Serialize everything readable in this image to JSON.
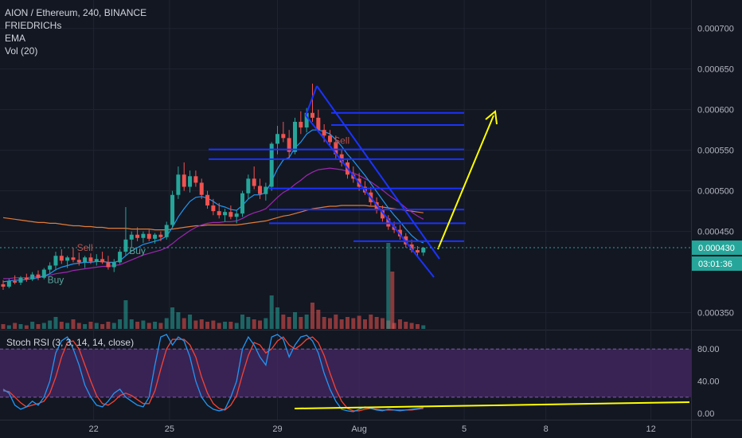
{
  "legend": {
    "symbol": "AION / Ethereum, 240, BINANCE",
    "indicators": [
      "FRIEDRICHs",
      "EMA",
      "Vol (20)"
    ]
  },
  "rsi": {
    "label": "Stoch RSI (3, 3, 14, 14, close)"
  },
  "badges": {
    "price": "0.000430",
    "countdown": "03:01:36"
  },
  "signals": {
    "buy": "Buy",
    "sell": "Sell"
  },
  "colors": {
    "background": "#131722",
    "grid": "#1f2430",
    "up": "#26a69a",
    "down": "#ef5350",
    "channel": "#1a33ff",
    "arrow": "#ffff00",
    "ema_short": "#2196f3",
    "ema_mid": "#9c27b0",
    "ema_long": "#e07b39",
    "rsi_k": "#2196f3",
    "rsi_d": "#f44336",
    "rsi_band": "#4a2a6a"
  },
  "chart_data": [
    {
      "type": "candlestick",
      "x_ticks": [
        "22",
        "25",
        "29",
        "Aug",
        "5",
        "8",
        "12"
      ],
      "y_ticks": [
        "0.000700",
        "0.000650",
        "0.000600",
        "0.000550",
        "0.000500",
        "0.000450",
        "0.000430",
        "0.000350"
      ],
      "ylim": [
        0.00033,
        0.000735
      ],
      "last_price": 0.00043,
      "ohlc": [
        [
          0.000385,
          0.00039,
          0.000378,
          0.000382
        ],
        [
          0.000382,
          0.000392,
          0.00038,
          0.000389
        ],
        [
          0.000389,
          0.000396,
          0.000385,
          0.000387
        ],
        [
          0.000387,
          0.000395,
          0.000384,
          0.000393
        ],
        [
          0.000393,
          0.000398,
          0.000388,
          0.000391
        ],
        [
          0.000391,
          0.0004,
          0.000389,
          0.000397
        ],
        [
          0.000397,
          0.000402,
          0.00039,
          0.000393
        ],
        [
          0.000393,
          0.000405,
          0.000391,
          0.000403
        ],
        [
          0.000403,
          0.000412,
          0.000398,
          0.000408
        ],
        [
          0.000408,
          0.000425,
          0.000402,
          0.00042
        ],
        [
          0.00042,
          0.000428,
          0.00041,
          0.000414
        ],
        [
          0.000414,
          0.00042,
          0.000405,
          0.000418
        ],
        [
          0.000418,
          0.00043,
          0.000412,
          0.000415
        ],
        [
          0.000415,
          0.000424,
          0.000408,
          0.000412
        ],
        [
          0.000412,
          0.00042,
          0.000405,
          0.000418
        ],
        [
          0.000418,
          0.000423,
          0.00041,
          0.000413
        ],
        [
          0.000413,
          0.000422,
          0.000408,
          0.000416
        ],
        [
          0.000416,
          0.000425,
          0.00041,
          0.000412
        ],
        [
          0.000412,
          0.00042,
          0.000403,
          0.000406
        ],
        [
          0.000406,
          0.000416,
          0.0004,
          0.000412
        ],
        [
          0.000412,
          0.000428,
          0.00041,
          0.000425
        ],
        [
          0.000425,
          0.00048,
          0.00042,
          0.00044
        ],
        [
          0.00044,
          0.00045,
          0.00043,
          0.000446
        ],
        [
          0.000446,
          0.000455,
          0.000438,
          0.000442
        ],
        [
          0.000442,
          0.00045,
          0.000436,
          0.000447
        ],
        [
          0.000447,
          0.000452,
          0.000438,
          0.000441
        ],
        [
          0.000441,
          0.000448,
          0.000435,
          0.000446
        ],
        [
          0.000446,
          0.00045,
          0.000438,
          0.000443
        ],
        [
          0.000443,
          0.000462,
          0.00044,
          0.000458
        ],
        [
          0.000458,
          0.0005,
          0.000455,
          0.000495
        ],
        [
          0.000495,
          0.00053,
          0.00049,
          0.00052
        ],
        [
          0.00052,
          0.000535,
          0.0005,
          0.000505
        ],
        [
          0.000505,
          0.000525,
          0.000498,
          0.000518
        ],
        [
          0.000518,
          0.000525,
          0.000505,
          0.00051
        ],
        [
          0.00051,
          0.000515,
          0.00049,
          0.000495
        ],
        [
          0.000495,
          0.0005,
          0.000478,
          0.000482
        ],
        [
          0.000482,
          0.00049,
          0.00047,
          0.000475
        ],
        [
          0.000475,
          0.000485,
          0.000466,
          0.00047
        ],
        [
          0.00047,
          0.000478,
          0.000462,
          0.000474
        ],
        [
          0.000474,
          0.000482,
          0.000465,
          0.000468
        ],
        [
          0.000468,
          0.000476,
          0.00046,
          0.000472
        ],
        [
          0.000472,
          0.0005,
          0.000468,
          0.000497
        ],
        [
          0.000497,
          0.00052,
          0.00049,
          0.000515
        ],
        [
          0.000515,
          0.00053,
          0.000502,
          0.000506
        ],
        [
          0.000506,
          0.000515,
          0.00049,
          0.000496
        ],
        [
          0.000496,
          0.00051,
          0.000488,
          0.000505
        ],
        [
          0.000505,
          0.00056,
          0.0005,
          0.000558
        ],
        [
          0.000558,
          0.00058,
          0.000545,
          0.00057
        ],
        [
          0.00057,
          0.000585,
          0.00056,
          0.000565
        ],
        [
          0.000565,
          0.000575,
          0.00054,
          0.000548
        ],
        [
          0.000548,
          0.00059,
          0.000545,
          0.000585
        ],
        [
          0.000585,
          0.000598,
          0.00057,
          0.000578
        ],
        [
          0.000578,
          0.000602,
          0.000572,
          0.000596
        ],
        [
          0.000596,
          0.000632,
          0.000585,
          0.00059
        ],
        [
          0.00059,
          0.0006,
          0.000572,
          0.000575
        ],
        [
          0.000575,
          0.000582,
          0.00056,
          0.000568
        ],
        [
          0.000568,
          0.000575,
          0.000555,
          0.00056
        ],
        [
          0.00056,
          0.000568,
          0.00054,
          0.000545
        ],
        [
          0.000545,
          0.000552,
          0.00053,
          0.000535
        ],
        [
          0.000535,
          0.00054,
          0.000515,
          0.00052
        ],
        [
          0.00052,
          0.00053,
          0.00051,
          0.000515
        ],
        [
          0.000515,
          0.000522,
          0.0005,
          0.000505
        ],
        [
          0.000505,
          0.000512,
          0.000495,
          0.000498
        ],
        [
          0.000498,
          0.000505,
          0.000482,
          0.000486
        ],
        [
          0.000486,
          0.000492,
          0.000472,
          0.000476
        ],
        [
          0.000476,
          0.000482,
          0.000462,
          0.000466
        ],
        [
          0.000466,
          0.00047,
          0.000452,
          0.000456
        ],
        [
          0.000456,
          0.000462,
          0.000448,
          0.000452
        ],
        [
          0.000452,
          0.000458,
          0.00044,
          0.000444
        ],
        [
          0.000444,
          0.000448,
          0.00043,
          0.000434
        ],
        [
          0.000434,
          0.00044,
          0.000424,
          0.000427
        ],
        [
          0.000427,
          0.000432,
          0.00042,
          0.000424
        ],
        [
          0.000424,
          0.000431,
          0.00042,
          0.00043
        ]
      ],
      "volume": [
        4,
        3,
        5,
        4,
        3,
        6,
        4,
        5,
        7,
        10,
        6,
        5,
        8,
        5,
        4,
        6,
        5,
        4,
        6,
        5,
        8,
        24,
        8,
        6,
        7,
        5,
        6,
        5,
        9,
        18,
        14,
        9,
        12,
        7,
        8,
        6,
        7,
        5,
        6,
        6,
        5,
        12,
        10,
        8,
        7,
        9,
        28,
        18,
        12,
        10,
        14,
        10,
        12,
        22,
        16,
        10,
        9,
        12,
        8,
        10,
        9,
        11,
        8,
        12,
        10,
        9,
        7,
        5,
        8,
        6,
        5,
        4,
        3
      ],
      "volume_extra": {
        "spike_index": 66,
        "spike_values": [
          48,
          72
        ]
      },
      "ema_short": [
        0.000388,
        0.000389,
        0.00039,
        0.00039,
        0.000391,
        0.000392,
        0.000393,
        0.000395,
        0.000398,
        0.000403,
        0.000406,
        0.000408,
        0.00041,
        0.000411,
        0.000412,
        0.000412,
        0.000413,
        0.000413,
        0.000412,
        0.000412,
        0.000414,
        0.00042,
        0.000426,
        0.00043,
        0.000434,
        0.000436,
        0.000438,
        0.00044,
        0.000444,
        0.000455,
        0.000468,
        0.000478,
        0.000487,
        0.000492,
        0.000493,
        0.000491,
        0.000487,
        0.000482,
        0.00048,
        0.000477,
        0.000476,
        0.000482,
        0.00049,
        0.000495,
        0.000495,
        0.000498,
        0.000512,
        0.000527,
        0.000538,
        0.000541,
        0.000553,
        0.00056,
        0.00057,
        0.000575,
        0.000575,
        0.000573,
        0.00057,
        0.000563,
        0.000555,
        0.000545,
        0.000537,
        0.000528,
        0.000519,
        0.000509,
        0.000499,
        0.000489,
        0.000479,
        0.00047,
        0.000462,
        0.000453,
        0.000445,
        0.000439,
        0.000436
      ],
      "ema_mid": [
        0.000392,
        0.000392,
        0.000393,
        0.000393,
        0.000393,
        0.000394,
        0.000394,
        0.000395,
        0.000396,
        0.000398,
        0.000399,
        0.0004,
        0.000402,
        0.000403,
        0.000404,
        0.000405,
        0.000406,
        0.000407,
        0.000407,
        0.000408,
        0.000409,
        0.000412,
        0.000415,
        0.000418,
        0.000421,
        0.000423,
        0.000425,
        0.000427,
        0.00043,
        0.000435,
        0.000441,
        0.000446,
        0.000451,
        0.000455,
        0.000458,
        0.00046,
        0.000461,
        0.000461,
        0.000462,
        0.000462,
        0.000463,
        0.000466,
        0.00047,
        0.000473,
        0.000475,
        0.000478,
        0.000485,
        0.000492,
        0.000498,
        0.000502,
        0.000508,
        0.000513,
        0.000519,
        0.000523,
        0.000526,
        0.000527,
        0.000528,
        0.000527,
        0.000526,
        0.000524,
        0.000522,
        0.000519,
        0.000515,
        0.000511,
        0.000506,
        0.000501,
        0.000495,
        0.00049,
        0.000485,
        0.000479,
        0.000474,
        0.000469,
        0.000465
      ],
      "ema_long": [
        0.000467,
        0.000466,
        0.000465,
        0.000464,
        0.000463,
        0.000462,
        0.000461,
        0.000461,
        0.00046,
        0.00046,
        0.000459,
        0.000458,
        0.000457,
        0.000457,
        0.000456,
        0.000456,
        0.000455,
        0.000455,
        0.000454,
        0.000454,
        0.000454,
        0.000454,
        0.000453,
        0.000453,
        0.000453,
        0.000453,
        0.000452,
        0.000452,
        0.000452,
        0.000453,
        0.000454,
        0.000455,
        0.000456,
        0.000457,
        0.000457,
        0.000458,
        0.000458,
        0.000458,
        0.000458,
        0.000458,
        0.000458,
        0.000459,
        0.00046,
        0.000461,
        0.000462,
        0.000463,
        0.000465,
        0.000467,
        0.000469,
        0.00047,
        0.000472,
        0.000474,
        0.000476,
        0.000478,
        0.000479,
        0.00048,
        0.000481,
        0.000481,
        0.000482,
        0.000482,
        0.000482,
        0.000482,
        0.000482,
        0.000481,
        0.000481,
        0.00048,
        0.000479,
        0.000478,
        0.000477,
        0.000476,
        0.000475,
        0.000474,
        0.000473
      ]
    },
    {
      "type": "line",
      "y_ticks": [
        "80.00",
        "40.00",
        "0.00"
      ],
      "ylim": [
        -8,
        102
      ],
      "bands": [
        20,
        80
      ],
      "k": [
        30,
        25,
        10,
        5,
        8,
        15,
        10,
        20,
        40,
        75,
        90,
        95,
        80,
        60,
        35,
        20,
        10,
        8,
        15,
        25,
        30,
        20,
        15,
        10,
        8,
        20,
        60,
        95,
        98,
        85,
        95,
        90,
        70,
        40,
        20,
        10,
        5,
        3,
        5,
        20,
        40,
        80,
        95,
        85,
        70,
        60,
        95,
        98,
        92,
        70,
        85,
        95,
        97,
        90,
        75,
        50,
        30,
        15,
        5,
        3,
        2,
        5,
        8,
        6,
        4,
        3,
        5,
        4,
        3,
        4,
        5,
        6,
        7
      ],
      "d": [
        28,
        27,
        20,
        13,
        8,
        10,
        12,
        15,
        25,
        45,
        70,
        88,
        90,
        80,
        60,
        40,
        22,
        12,
        10,
        15,
        22,
        25,
        22,
        17,
        12,
        12,
        28,
        55,
        80,
        92,
        92,
        92,
        85,
        70,
        45,
        25,
        12,
        6,
        4,
        10,
        22,
        48,
        72,
        88,
        85,
        75,
        80,
        90,
        95,
        85,
        80,
        85,
        92,
        95,
        88,
        72,
        50,
        30,
        15,
        6,
        3,
        3,
        5,
        6,
        5,
        4,
        4,
        4,
        4,
        4,
        4,
        5,
        6
      ]
    }
  ]
}
